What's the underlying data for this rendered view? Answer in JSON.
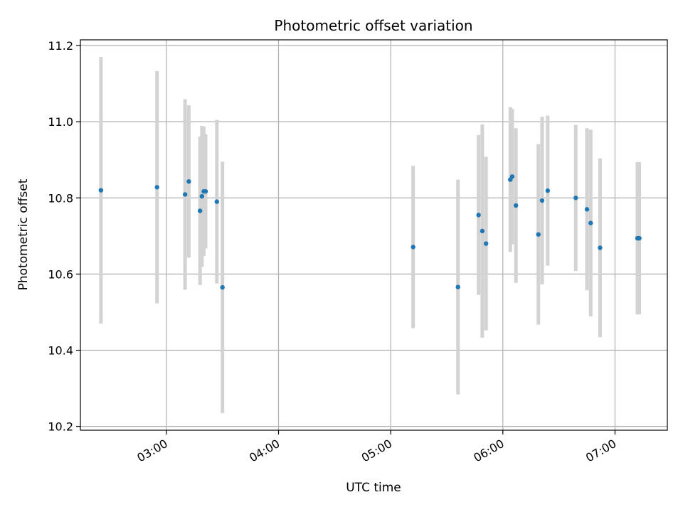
{
  "chart_data": {
    "type": "scatter",
    "title": "Photometric offset variation",
    "xlabel": "UTC time",
    "ylabel": "Photometric offset",
    "x_tick_labels": [
      "03:00",
      "04:00",
      "05:00",
      "06:00",
      "07:00"
    ],
    "x_tick_values": [
      "03:00",
      "04:00",
      "05:00",
      "06:00",
      "07:00"
    ],
    "y_tick_values": [
      10.2,
      10.4,
      10.6,
      10.8,
      11.0,
      11.2
    ],
    "y_tick_labels": [
      "10.2",
      "10.4",
      "10.6",
      "10.8",
      "11.0",
      "11.2"
    ],
    "xlim": [
      "02:14",
      "07:28"
    ],
    "ylim": [
      10.19,
      11.215
    ],
    "grid": true,
    "marker_color": "#1f77b4",
    "errorbar_color": "#d3d3d3",
    "points": [
      {
        "time": "02:25",
        "y": 10.82,
        "err": 0.35
      },
      {
        "time": "02:55",
        "y": 10.828,
        "err": 0.305
      },
      {
        "time": "03:10",
        "y": 10.809,
        "err": 0.25
      },
      {
        "time": "03:12",
        "y": 10.843,
        "err": 0.2
      },
      {
        "time": "03:18",
        "y": 10.766,
        "err": 0.195
      },
      {
        "time": "03:19",
        "y": 10.804,
        "err": 0.185
      },
      {
        "time": "03:20",
        "y": 10.817,
        "err": 0.17
      },
      {
        "time": "03:21",
        "y": 10.817,
        "err": 0.15
      },
      {
        "time": "03:27",
        "y": 10.79,
        "err": 0.215
      },
      {
        "time": "03:30",
        "y": 10.565,
        "err": 0.33
      },
      {
        "time": "05:12",
        "y": 10.671,
        "err": 0.213
      },
      {
        "time": "05:36",
        "y": 10.566,
        "err": 0.282
      },
      {
        "time": "05:47",
        "y": 10.755,
        "err": 0.21
      },
      {
        "time": "05:49",
        "y": 10.713,
        "err": 0.28
      },
      {
        "time": "05:51",
        "y": 10.68,
        "err": 0.228
      },
      {
        "time": "06:04",
        "y": 10.848,
        "err": 0.19
      },
      {
        "time": "06:05",
        "y": 10.856,
        "err": 0.178
      },
      {
        "time": "06:07",
        "y": 10.78,
        "err": 0.203
      },
      {
        "time": "06:19",
        "y": 10.704,
        "err": 0.237
      },
      {
        "time": "06:21",
        "y": 10.793,
        "err": 0.22
      },
      {
        "time": "06:24",
        "y": 10.819,
        "err": 0.197
      },
      {
        "time": "06:39",
        "y": 10.8,
        "err": 0.192
      },
      {
        "time": "06:45",
        "y": 10.77,
        "err": 0.213
      },
      {
        "time": "06:47",
        "y": 10.734,
        "err": 0.245
      },
      {
        "time": "06:52",
        "y": 10.669,
        "err": 0.235
      },
      {
        "time": "07:12",
        "y": 10.694,
        "err": 0.2
      },
      {
        "time": "07:13",
        "y": 10.694,
        "err": 0.2
      }
    ]
  }
}
